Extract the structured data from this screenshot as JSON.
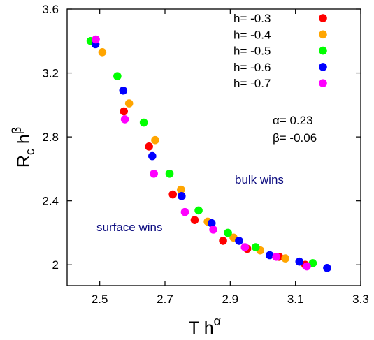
{
  "chart_data": {
    "type": "scatter",
    "xlabel": {
      "base": "T h",
      "sup": "α"
    },
    "ylabel": {
      "base": "R",
      "sub": "c",
      "mid": " h",
      "sup": "β"
    },
    "xlim": [
      2.4,
      3.3
    ],
    "ylim": [
      1.87,
      3.6
    ],
    "xticks": [
      2.5,
      2.7,
      2.9,
      3.1,
      3.3
    ],
    "xtick_labels": [
      "2.5",
      "2.7",
      "2.9",
      "3.1",
      "3.3"
    ],
    "yticks": [
      2.0,
      2.4,
      2.8,
      3.2,
      3.6
    ],
    "ytick_labels": [
      "2",
      "2.4",
      "2.8",
      "3.2",
      "3.6"
    ],
    "grid": false,
    "legend_position": "top-right",
    "series": [
      {
        "name": "h= -0.3",
        "color": "#ff0000",
        "x": [
          2.486,
          2.574,
          2.651,
          2.724,
          2.791,
          2.878,
          2.952,
          3.05,
          3.13
        ],
        "y": [
          3.39,
          2.96,
          2.74,
          2.44,
          2.28,
          2.15,
          2.1,
          2.05,
          2.0
        ]
      },
      {
        "name": "h= -0.4",
        "color": "#ffa500",
        "x": [
          2.508,
          2.59,
          2.67,
          2.749,
          2.831,
          2.91,
          2.992,
          3.069
        ],
        "y": [
          3.33,
          3.01,
          2.78,
          2.47,
          2.27,
          2.17,
          2.09,
          2.04
        ]
      },
      {
        "name": "h= -0.5",
        "color": "#00ff00",
        "x": [
          2.472,
          2.554,
          2.635,
          2.714,
          2.803,
          2.893,
          2.978,
          3.153
        ],
        "y": [
          3.4,
          3.18,
          2.89,
          2.57,
          2.34,
          2.2,
          2.11,
          2.01
        ]
      },
      {
        "name": "h= -0.6",
        "color": "#0000ff",
        "x": [
          2.487,
          2.572,
          2.661,
          2.751,
          2.843,
          2.927,
          3.021,
          3.112,
          3.197
        ],
        "y": [
          3.38,
          3.09,
          2.68,
          2.43,
          2.26,
          2.15,
          2.06,
          2.02,
          1.98
        ]
      },
      {
        "name": "h= -0.7",
        "color": "#ff00ff",
        "x": [
          2.488,
          2.577,
          2.666,
          2.761,
          2.848,
          2.945,
          3.041,
          3.135
        ],
        "y": [
          3.41,
          2.91,
          2.57,
          2.33,
          2.22,
          2.11,
          2.05,
          1.99
        ]
      }
    ],
    "annotations": {
      "alpha": "α= 0.23",
      "beta": "β= -0.06",
      "bulk": "bulk wins",
      "surface": "surface wins"
    }
  }
}
